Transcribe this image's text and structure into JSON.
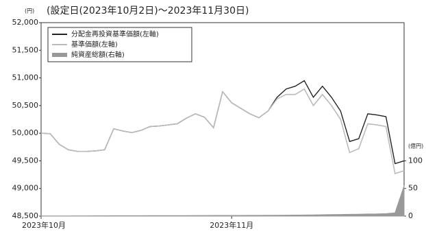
{
  "chart_data": {
    "type": "line",
    "title": "(設定日(2023年10月2日)～2023年11月30日)",
    "y_unit": "(円)",
    "y2_unit": "(億円)",
    "categories": [
      "2023年10月",
      null,
      null,
      null,
      null,
      null,
      null,
      null,
      null,
      null,
      null,
      null,
      null,
      null,
      null,
      null,
      null,
      null,
      null,
      null,
      null,
      "2023年11月",
      null,
      null,
      null,
      null,
      null,
      null,
      null,
      null,
      null,
      null,
      null,
      null,
      null,
      null,
      null,
      null,
      null,
      null,
      null
    ],
    "series": [
      {
        "name": "分配金再投資基準価額(左軸)",
        "color": "#222222",
        "axis": "y",
        "values": [
          50000,
          49990,
          49800,
          49700,
          49670,
          49670,
          49680,
          49700,
          50080,
          50040,
          50010,
          50050,
          50120,
          50130,
          50150,
          50170,
          50270,
          50350,
          50290,
          50100,
          50750,
          50550,
          50450,
          50350,
          50280,
          50400,
          50650,
          50800,
          50850,
          50950,
          50650,
          50850,
          50650,
          50400,
          49850,
          49900,
          50350,
          50330,
          50300,
          49450,
          49500
        ]
      },
      {
        "name": "基準価額(左軸)",
        "color": "#bbbbbb",
        "axis": "y",
        "values": [
          50000,
          49990,
          49800,
          49700,
          49670,
          49670,
          49680,
          49700,
          50080,
          50040,
          50010,
          50050,
          50120,
          50130,
          50150,
          50170,
          50270,
          50350,
          50290,
          50100,
          50750,
          50550,
          50450,
          50350,
          50280,
          50400,
          50620,
          50700,
          50700,
          50800,
          50500,
          50700,
          50500,
          50250,
          49650,
          49720,
          50170,
          50150,
          50120,
          49270,
          49320
        ]
      },
      {
        "name": "純資産総額(右軸)",
        "color": "#999999",
        "axis": "y2",
        "values": [
          0.3,
          0.3,
          0.4,
          0.4,
          0.5,
          0.5,
          0.6,
          0.6,
          0.7,
          0.7,
          0.8,
          0.8,
          0.9,
          0.9,
          1,
          1,
          1,
          1.1,
          1.1,
          1.2,
          1.2,
          1.3,
          1.3,
          1.4,
          1.4,
          1.5,
          1.6,
          1.7,
          1.8,
          2,
          2.2,
          2.5,
          2.8,
          3,
          3.2,
          3.5,
          3.8,
          4,
          4.5,
          6,
          55
        ]
      }
    ],
    "ylim": [
      48500,
      52000
    ],
    "yticks": [
      {
        "value": 48500,
        "label": "48,500"
      },
      {
        "value": 49000,
        "label": "49,000"
      },
      {
        "value": 49500,
        "label": "49,500"
      },
      {
        "value": 50000,
        "label": "50,000"
      },
      {
        "value": 50500,
        "label": "50,500"
      },
      {
        "value": 51000,
        "label": "51,000"
      },
      {
        "value": 51500,
        "label": "51,500"
      },
      {
        "value": 52000,
        "label": "52,000"
      }
    ],
    "y2lim": [
      0,
      350
    ],
    "y2ticks": [
      0,
      50,
      100
    ],
    "legend": "upper left"
  }
}
